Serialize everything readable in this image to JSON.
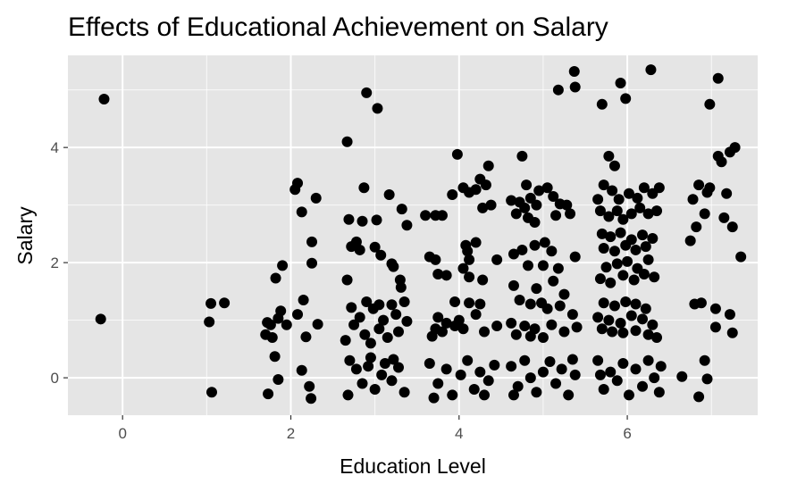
{
  "chart_data": {
    "type": "scatter",
    "title": "Effects of Educational Achievement on Salary",
    "xlabel": "Education Level",
    "ylabel": "Salary",
    "xlim": [
      -0.65,
      7.55
    ],
    "ylim": [
      -0.65,
      5.6
    ],
    "x_ticks": [
      0,
      2,
      4,
      6
    ],
    "x_tick_labels": [
      "0",
      "2",
      "4",
      "6"
    ],
    "y_ticks": [
      0,
      2,
      4
    ],
    "y_tick_labels": [
      "0",
      "2",
      "4"
    ],
    "grid": true,
    "legend": "none",
    "background": "#e5e5e5",
    "gridline_color": "#ffffff",
    "point_color": "#000000",
    "points": [
      [
        -0.22,
        4.84
      ],
      [
        -0.26,
        1.02
      ],
      [
        1.05,
        1.29
      ],
      [
        1.03,
        0.97
      ],
      [
        1.06,
        -0.25
      ],
      [
        1.21,
        1.3
      ],
      [
        2.05,
        3.27
      ],
      [
        2.08,
        3.38
      ],
      [
        2.13,
        2.88
      ],
      [
        2.3,
        3.12
      ],
      [
        1.9,
        1.95
      ],
      [
        2.25,
        2.36
      ],
      [
        2.25,
        1.99
      ],
      [
        1.82,
        1.73
      ],
      [
        2.15,
        1.35
      ],
      [
        1.95,
        0.92
      ],
      [
        2.08,
        1.1
      ],
      [
        1.85,
        1.03
      ],
      [
        1.72,
        0.96
      ],
      [
        1.76,
        0.92
      ],
      [
        1.88,
        1.16
      ],
      [
        2.32,
        0.93
      ],
      [
        1.7,
        0.75
      ],
      [
        1.78,
        0.7
      ],
      [
        2.18,
        0.71
      ],
      [
        1.81,
        0.37
      ],
      [
        2.13,
        0.13
      ],
      [
        1.85,
        -0.03
      ],
      [
        2.22,
        -0.15
      ],
      [
        1.73,
        -0.28
      ],
      [
        2.24,
        -0.36
      ],
      [
        2.67,
        4.1
      ],
      [
        2.9,
        4.95
      ],
      [
        3.03,
        4.68
      ],
      [
        2.87,
        3.3
      ],
      [
        3.17,
        3.18
      ],
      [
        3.32,
        2.93
      ],
      [
        2.69,
        2.75
      ],
      [
        2.85,
        2.72
      ],
      [
        3.02,
        2.74
      ],
      [
        3.38,
        2.65
      ],
      [
        2.72,
        2.28
      ],
      [
        2.78,
        2.36
      ],
      [
        2.82,
        2.22
      ],
      [
        3.0,
        2.27
      ],
      [
        3.07,
        2.13
      ],
      [
        3.2,
        1.98
      ],
      [
        3.22,
        1.93
      ],
      [
        3.3,
        1.7
      ],
      [
        2.67,
        1.7
      ],
      [
        3.31,
        1.57
      ],
      [
        2.9,
        1.32
      ],
      [
        3.05,
        1.27
      ],
      [
        3.2,
        1.27
      ],
      [
        3.35,
        1.32
      ],
      [
        2.72,
        1.22
      ],
      [
        2.98,
        1.2
      ],
      [
        3.25,
        1.1
      ],
      [
        2.82,
        1.05
      ],
      [
        3.1,
        1.0
      ],
      [
        3.38,
        0.98
      ],
      [
        2.75,
        0.92
      ],
      [
        3.05,
        0.85
      ],
      [
        3.28,
        0.8
      ],
      [
        2.88,
        0.75
      ],
      [
        3.15,
        0.7
      ],
      [
        2.65,
        0.65
      ],
      [
        2.95,
        0.6
      ],
      [
        3.6,
        2.82
      ],
      [
        3.72,
        2.82
      ],
      [
        3.8,
        2.82
      ],
      [
        3.92,
        3.18
      ],
      [
        4.05,
        3.3
      ],
      [
        4.12,
        3.22
      ],
      [
        4.2,
        3.27
      ],
      [
        3.98,
        3.88
      ],
      [
        4.35,
        3.68
      ],
      [
        4.25,
        3.45
      ],
      [
        4.32,
        3.35
      ],
      [
        4.28,
        2.95
      ],
      [
        4.38,
        3.0
      ],
      [
        3.65,
        2.1
      ],
      [
        3.72,
        2.05
      ],
      [
        3.75,
        1.8
      ],
      [
        3.85,
        1.78
      ],
      [
        4.08,
        2.3
      ],
      [
        4.1,
        2.2
      ],
      [
        4.2,
        2.35
      ],
      [
        4.12,
        2.05
      ],
      [
        4.05,
        1.9
      ],
      [
        4.12,
        1.75
      ],
      [
        4.28,
        1.7
      ],
      [
        4.45,
        2.05
      ],
      [
        3.95,
        1.32
      ],
      [
        4.12,
        1.3
      ],
      [
        4.25,
        1.28
      ],
      [
        3.75,
        1.05
      ],
      [
        3.85,
        0.95
      ],
      [
        4.0,
        1.0
      ],
      [
        4.2,
        1.1
      ],
      [
        3.72,
        0.85
      ],
      [
        3.8,
        0.8
      ],
      [
        3.95,
        0.9
      ],
      [
        4.05,
        0.85
      ],
      [
        4.3,
        0.8
      ],
      [
        4.45,
        0.9
      ],
      [
        3.68,
        0.72
      ],
      [
        4.62,
        3.08
      ],
      [
        4.72,
        3.05
      ],
      [
        4.78,
        2.95
      ],
      [
        4.85,
        3.12
      ],
      [
        4.92,
        3.0
      ],
      [
        4.68,
        2.85
      ],
      [
        4.82,
        2.78
      ],
      [
        4.9,
        2.7
      ],
      [
        4.75,
        3.85
      ],
      [
        4.8,
        3.35
      ],
      [
        4.95,
        3.25
      ],
      [
        5.05,
        3.3
      ],
      [
        5.12,
        3.15
      ],
      [
        5.2,
        3.02
      ],
      [
        5.28,
        3.0
      ],
      [
        5.15,
        2.82
      ],
      [
        5.32,
        2.85
      ],
      [
        5.18,
        5.0
      ],
      [
        5.38,
        5.05
      ],
      [
        5.37,
        5.32
      ],
      [
        4.65,
        2.15
      ],
      [
        4.75,
        2.22
      ],
      [
        4.9,
        2.3
      ],
      [
        5.02,
        2.35
      ],
      [
        5.1,
        2.2
      ],
      [
        5.38,
        2.1
      ],
      [
        4.82,
        1.95
      ],
      [
        5.0,
        1.95
      ],
      [
        5.18,
        1.9
      ],
      [
        4.65,
        1.6
      ],
      [
        4.92,
        1.55
      ],
      [
        5.12,
        1.68
      ],
      [
        5.25,
        1.45
      ],
      [
        4.72,
        1.35
      ],
      [
        4.85,
        1.28
      ],
      [
        4.98,
        1.3
      ],
      [
        5.05,
        1.2
      ],
      [
        5.2,
        1.25
      ],
      [
        5.35,
        1.1
      ],
      [
        4.62,
        0.95
      ],
      [
        4.78,
        0.9
      ],
      [
        4.9,
        0.85
      ],
      [
        5.1,
        0.92
      ],
      [
        5.25,
        0.8
      ],
      [
        5.4,
        0.88
      ],
      [
        4.68,
        0.75
      ],
      [
        4.85,
        0.72
      ],
      [
        5.0,
        0.7
      ],
      [
        5.7,
        4.75
      ],
      [
        5.92,
        5.12
      ],
      [
        5.98,
        4.85
      ],
      [
        6.28,
        5.35
      ],
      [
        5.78,
        3.85
      ],
      [
        5.85,
        3.68
      ],
      [
        5.65,
        3.1
      ],
      [
        5.72,
        3.35
      ],
      [
        5.82,
        3.25
      ],
      [
        5.9,
        3.1
      ],
      [
        6.02,
        3.2
      ],
      [
        6.12,
        3.12
      ],
      [
        6.2,
        3.3
      ],
      [
        6.3,
        3.2
      ],
      [
        6.38,
        3.3
      ],
      [
        5.68,
        2.9
      ],
      [
        5.78,
        2.8
      ],
      [
        5.88,
        2.9
      ],
      [
        5.95,
        2.75
      ],
      [
        6.05,
        2.85
      ],
      [
        6.15,
        2.95
      ],
      [
        6.25,
        2.85
      ],
      [
        6.35,
        2.9
      ],
      [
        5.7,
        2.5
      ],
      [
        5.8,
        2.45
      ],
      [
        5.92,
        2.52
      ],
      [
        6.05,
        2.4
      ],
      [
        6.18,
        2.48
      ],
      [
        6.3,
        2.42
      ],
      [
        5.72,
        2.25
      ],
      [
        5.85,
        2.2
      ],
      [
        5.98,
        2.3
      ],
      [
        6.1,
        2.22
      ],
      [
        6.22,
        2.28
      ],
      [
        5.75,
        1.92
      ],
      [
        5.88,
        1.98
      ],
      [
        6.0,
        2.02
      ],
      [
        6.12,
        1.9
      ],
      [
        6.25,
        2.05
      ],
      [
        5.68,
        1.72
      ],
      [
        5.8,
        1.65
      ],
      [
        5.95,
        1.78
      ],
      [
        6.08,
        1.7
      ],
      [
        6.2,
        1.8
      ],
      [
        6.32,
        1.75
      ],
      [
        5.72,
        1.3
      ],
      [
        5.85,
        1.25
      ],
      [
        5.98,
        1.32
      ],
      [
        6.1,
        1.28
      ],
      [
        6.22,
        1.2
      ],
      [
        5.65,
        1.05
      ],
      [
        5.78,
        1.0
      ],
      [
        5.92,
        0.95
      ],
      [
        6.05,
        1.08
      ],
      [
        6.18,
        1.02
      ],
      [
        6.3,
        0.92
      ],
      [
        5.7,
        0.85
      ],
      [
        5.82,
        0.8
      ],
      [
        5.95,
        0.78
      ],
      [
        6.1,
        0.82
      ],
      [
        6.25,
        0.75
      ],
      [
        6.35,
        0.7
      ],
      [
        6.75,
        2.38
      ],
      [
        6.78,
        3.1
      ],
      [
        6.82,
        2.62
      ],
      [
        6.85,
        3.35
      ],
      [
        6.92,
        2.85
      ],
      [
        6.95,
        3.22
      ],
      [
        6.98,
        4.75
      ],
      [
        6.98,
        3.3
      ],
      [
        7.08,
        5.2
      ],
      [
        7.08,
        3.85
      ],
      [
        7.12,
        3.75
      ],
      [
        7.15,
        2.78
      ],
      [
        7.18,
        3.2
      ],
      [
        7.22,
        3.92
      ],
      [
        7.28,
        4.0
      ],
      [
        7.25,
        2.62
      ],
      [
        7.35,
        2.1
      ],
      [
        6.8,
        1.28
      ],
      [
        6.88,
        1.3
      ],
      [
        7.05,
        1.2
      ],
      [
        7.22,
        1.1
      ],
      [
        7.05,
        0.88
      ],
      [
        7.25,
        0.78
      ],
      [
        6.65,
        0.02
      ],
      [
        6.92,
        0.3
      ],
      [
        6.95,
        -0.02
      ],
      [
        6.85,
        -0.33
      ],
      [
        2.7,
        0.3
      ],
      [
        2.78,
        0.15
      ],
      [
        2.85,
        -0.1
      ],
      [
        2.92,
        0.2
      ],
      [
        3.0,
        -0.2
      ],
      [
        3.08,
        0.05
      ],
      [
        3.12,
        0.25
      ],
      [
        3.2,
        -0.05
      ],
      [
        3.28,
        0.18
      ],
      [
        3.35,
        -0.25
      ],
      [
        2.68,
        -0.3
      ],
      [
        2.95,
        0.35
      ],
      [
        3.22,
        0.32
      ],
      [
        3.65,
        0.25
      ],
      [
        3.75,
        -0.1
      ],
      [
        3.85,
        0.15
      ],
      [
        3.92,
        -0.3
      ],
      [
        4.02,
        0.05
      ],
      [
        4.1,
        0.3
      ],
      [
        4.18,
        -0.2
      ],
      [
        4.25,
        0.1
      ],
      [
        4.35,
        -0.05
      ],
      [
        4.42,
        0.22
      ],
      [
        3.7,
        -0.35
      ],
      [
        4.3,
        -0.3
      ],
      [
        4.62,
        0.2
      ],
      [
        4.7,
        -0.15
      ],
      [
        4.78,
        0.3
      ],
      [
        4.85,
        0.0
      ],
      [
        4.92,
        -0.25
      ],
      [
        5.0,
        0.1
      ],
      [
        5.08,
        0.28
      ],
      [
        5.15,
        -0.1
      ],
      [
        5.22,
        0.15
      ],
      [
        5.3,
        -0.3
      ],
      [
        5.38,
        0.05
      ],
      [
        4.65,
        -0.3
      ],
      [
        5.35,
        0.32
      ],
      [
        5.65,
        0.3
      ],
      [
        5.72,
        -0.2
      ],
      [
        5.8,
        0.1
      ],
      [
        5.88,
        -0.05
      ],
      [
        5.95,
        0.25
      ],
      [
        6.02,
        -0.3
      ],
      [
        6.1,
        0.15
      ],
      [
        6.18,
        -0.15
      ],
      [
        6.25,
        0.3
      ],
      [
        6.32,
        0.0
      ],
      [
        6.38,
        -0.25
      ],
      [
        5.68,
        0.05
      ],
      [
        6.4,
        0.2
      ]
    ]
  }
}
